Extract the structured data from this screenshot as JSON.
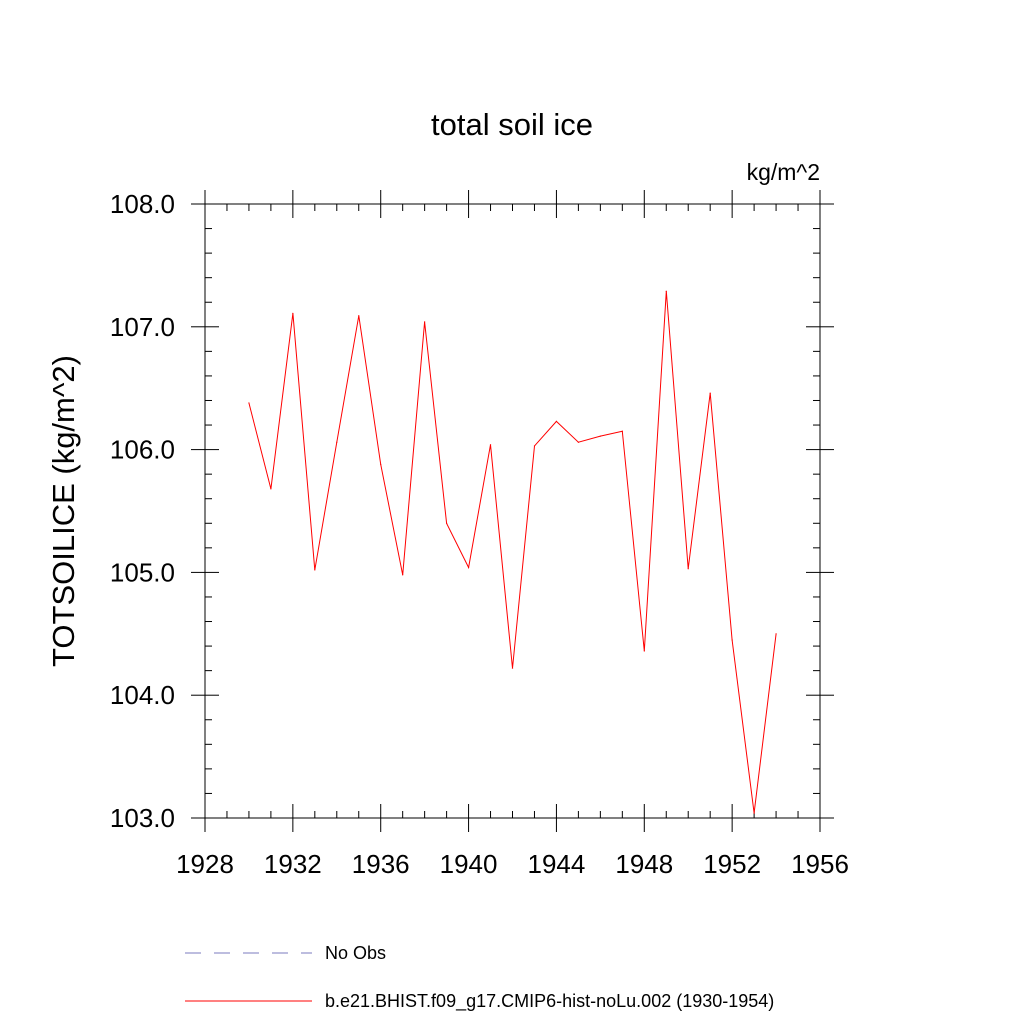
{
  "chart_data": {
    "type": "line",
    "title": "total soil ice",
    "units_label": "kg/m^2",
    "ylabel": "TOTSOILICE  (kg/m^2)",
    "xlabel": "",
    "xlim": [
      1928,
      1956
    ],
    "ylim": [
      103.0,
      108.0
    ],
    "x_ticks": [
      1928,
      1932,
      1936,
      1940,
      1944,
      1948,
      1952,
      1956
    ],
    "x_tick_labels": [
      "1928",
      "1932",
      "1936",
      "1940",
      "1944",
      "1948",
      "1952",
      "1956"
    ],
    "y_ticks": [
      103.0,
      104.0,
      105.0,
      106.0,
      107.0,
      108.0
    ],
    "y_tick_labels": [
      "103.0",
      "104.0",
      "105.0",
      "106.0",
      "107.0",
      "108.0"
    ],
    "grid": false,
    "legend_position": "bottom",
    "series": [
      {
        "name": "b.e21.BHIST.f09_g17.CMIP6-hist-noLu.002 (1930-1954)",
        "color": "#ff0000",
        "style": "solid",
        "x": [
          1930,
          1931,
          1932,
          1933,
          1934,
          1935,
          1936,
          1937,
          1938,
          1939,
          1940,
          1941,
          1942,
          1943,
          1944,
          1945,
          1946,
          1947,
          1948,
          1949,
          1950,
          1951,
          1952,
          1953,
          1954
        ],
        "values": [
          106.38,
          105.68,
          107.11,
          105.02,
          106.06,
          107.09,
          105.88,
          104.98,
          107.04,
          105.4,
          105.04,
          106.04,
          104.22,
          106.03,
          106.23,
          106.06,
          106.11,
          106.15,
          104.36,
          107.29,
          105.03,
          106.46,
          104.45,
          103.04,
          104.5
        ]
      }
    ],
    "legend": [
      {
        "label": "No Obs",
        "color": "#7b7bbf",
        "style": "dashed"
      },
      {
        "label": "b.e21.BHIST.f09_g17.CMIP6-hist-noLu.002 (1930-1954)",
        "color": "#ff0000",
        "style": "solid"
      }
    ]
  }
}
